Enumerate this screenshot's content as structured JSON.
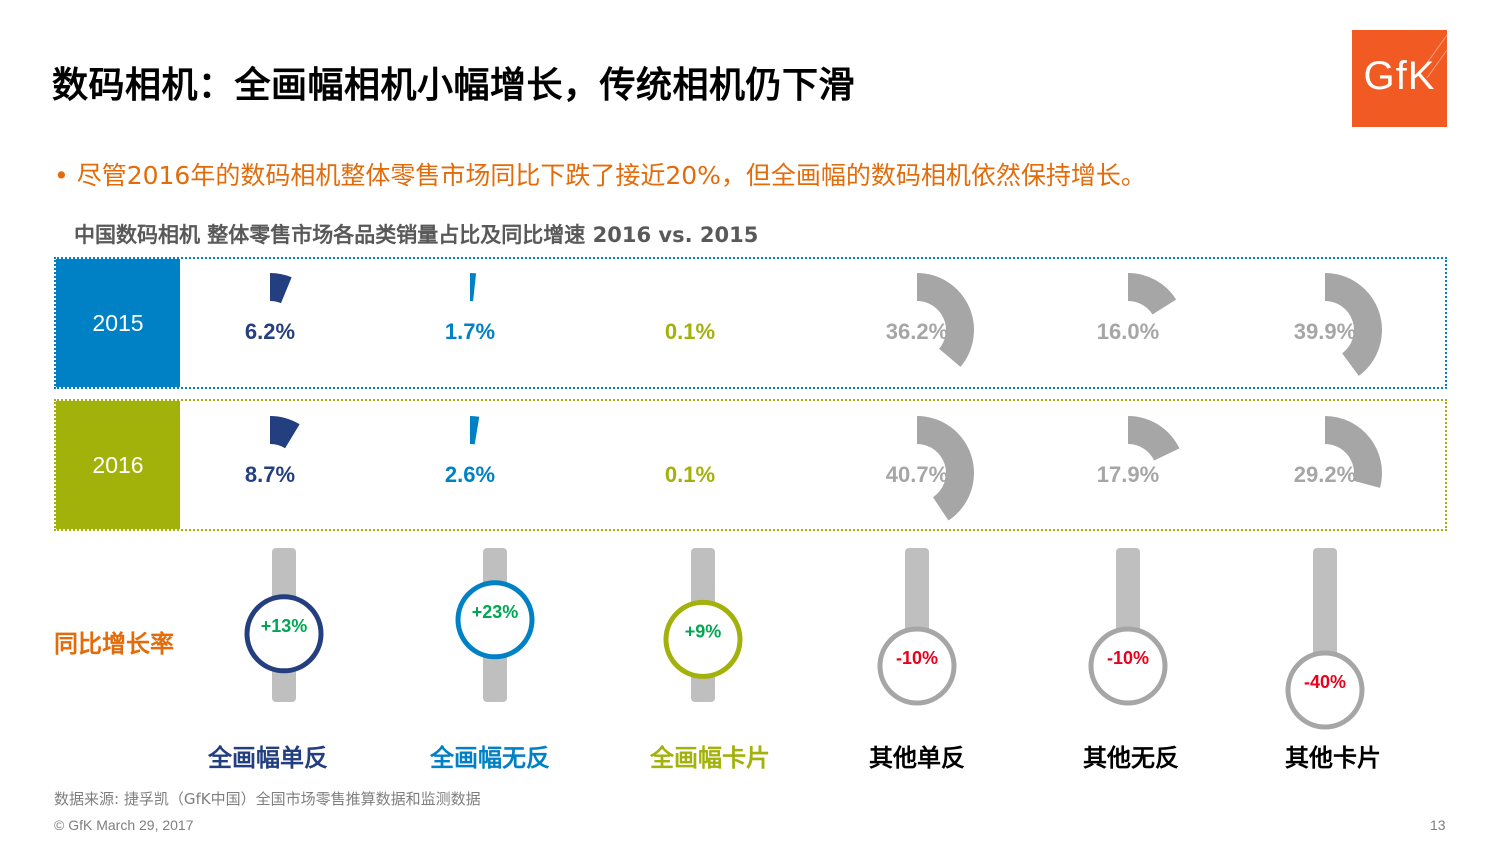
{
  "title": "数码相机：全画幅相机小幅增长，传统相机仍下滑",
  "logo_text": "GfK",
  "bullet": "• 尽管2016年的数码相机整体零售市场同比下跌了接近20%，但全画幅的数码相机依然保持增长。",
  "colors": {
    "navy": "#243f7f",
    "blue": "#0081c6",
    "green": "#a3b10b",
    "gray": "#a6a6a6",
    "black": "#000000",
    "orange": "#e36c0a",
    "pos": "#00a651",
    "neg": "#e8001c"
  },
  "chart_data": {
    "type": "pie",
    "title": "中国数码相机 整体零售市场各品类销量占比及同比增速 2016 vs. 2015",
    "categories": [
      "全画幅单反",
      "全画幅无反",
      "全画幅卡片",
      "其他单反",
      "其他无反",
      "其他卡片"
    ],
    "series": [
      {
        "name": "2015",
        "values": [
          6.2,
          1.7,
          0.1,
          36.2,
          16.0,
          39.9
        ],
        "labels": [
          "6.2%",
          "1.7%",
          "0.1%",
          "36.2%",
          "16.0%",
          "39.9%"
        ]
      },
      {
        "name": "2016",
        "values": [
          8.7,
          2.6,
          0.1,
          40.7,
          17.9,
          29.2
        ],
        "labels": [
          "8.7%",
          "2.6%",
          "0.1%",
          "40.7%",
          "17.9%",
          "29.2%"
        ]
      }
    ],
    "growth_label": "同比增长率",
    "growth": [
      13,
      23,
      9,
      -10,
      -10,
      -40
    ],
    "growth_labels": [
      "+13%",
      "+23%",
      "+9%",
      "-10%",
      "-10%",
      "-40%"
    ],
    "category_colors": [
      "navy",
      "blue",
      "green",
      "black",
      "black",
      "black"
    ],
    "value_colors": [
      "navy",
      "blue",
      "green",
      "gray",
      "gray",
      "gray"
    ]
  },
  "source": "数据来源: 捷孚凯（GfK中国）全国市场零售推算数据和监测数据",
  "footer": "© GfK March 29, 2017",
  "page_number": "13"
}
